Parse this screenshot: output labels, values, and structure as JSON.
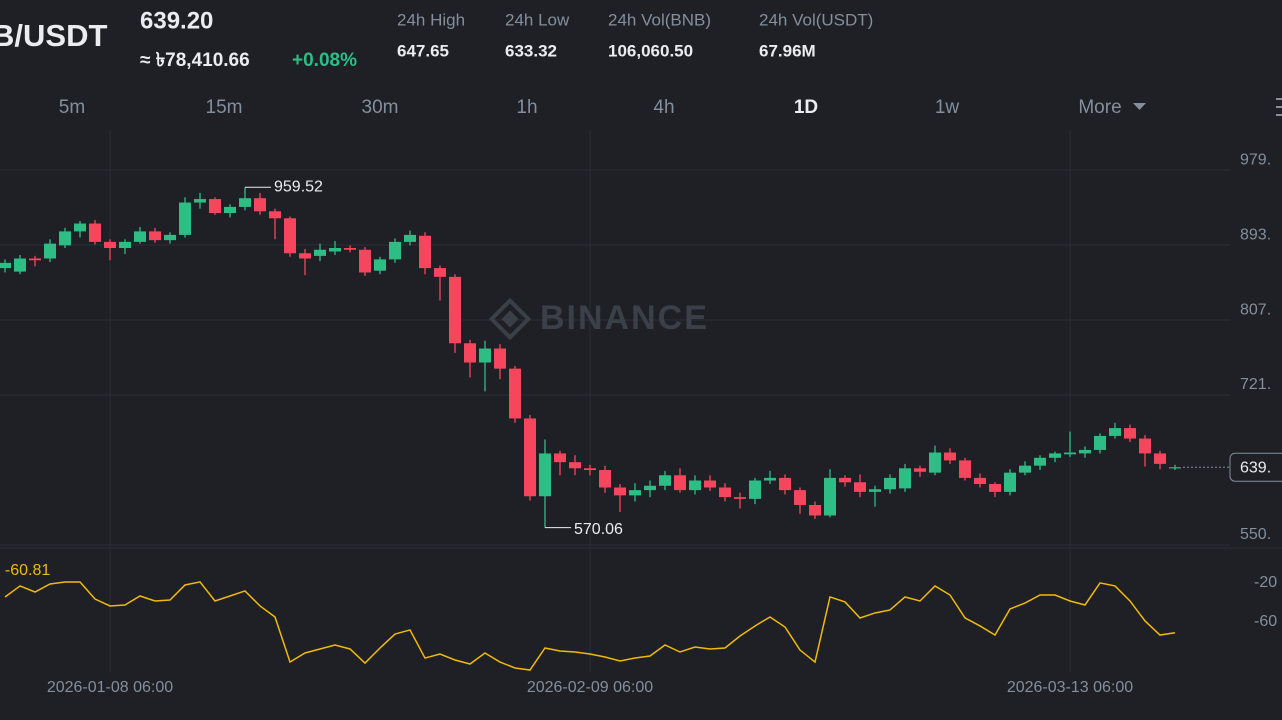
{
  "header": {
    "pair": "B/USDT",
    "price": "639.20",
    "fiat": "≈ ৳78,410.66",
    "change": "+0.08%",
    "stats": [
      {
        "label": "24h High",
        "value": "647.65"
      },
      {
        "label": "24h Low",
        "value": "633.32"
      },
      {
        "label": "24h Vol(BNB)",
        "value": "106,060.50"
      },
      {
        "label": "24h Vol(USDT)",
        "value": "67.96M"
      }
    ]
  },
  "timeframes": [
    "5m",
    "15m",
    "30m",
    "1h",
    "4h",
    "1D",
    "1w",
    "More"
  ],
  "active_timeframe": "1D",
  "watermark": "BINANCE",
  "chart_data": [
    {
      "type": "candlestick",
      "up_color": "#2ebd85",
      "down_color": "#f6465d",
      "grid": true,
      "categories": [
        null,
        null,
        null,
        null,
        null,
        null,
        null,
        "2026-01-08 06:00",
        null,
        null,
        null,
        null,
        null,
        null,
        null,
        null,
        null,
        null,
        null,
        null,
        null,
        null,
        null,
        null,
        null,
        null,
        null,
        null,
        null,
        null,
        null,
        null,
        null,
        null,
        null,
        null,
        null,
        null,
        null,
        "2026-02-09 06:00",
        null,
        null,
        null,
        null,
        null,
        null,
        null,
        null,
        null,
        null,
        null,
        null,
        null,
        null,
        null,
        null,
        null,
        null,
        null,
        null,
        null,
        null,
        null,
        null,
        null,
        null,
        null,
        null,
        null,
        null,
        null,
        "2026-03-13 06:00",
        null,
        null,
        null,
        null,
        null,
        null,
        null
      ],
      "open": [
        867,
        863,
        878,
        878,
        893,
        909,
        918,
        897,
        890,
        897,
        909,
        899,
        905,
        942,
        946,
        930,
        937,
        947,
        932,
        924,
        884,
        881,
        886,
        890,
        888,
        864,
        877,
        897,
        904,
        867,
        857,
        781,
        759,
        775,
        752,
        695,
        606,
        655,
        645,
        638,
        636,
        616,
        607,
        613,
        618,
        630,
        613,
        624,
        616,
        605,
        603,
        624,
        627,
        613,
        596,
        584,
        627,
        622,
        611,
        614,
        615,
        638,
        633,
        656,
        647,
        627,
        620,
        611,
        633,
        641,
        650,
        654,
        655,
        659,
        675,
        684,
        672,
        655,
        638
      ],
      "high": [
        877,
        882,
        881,
        900,
        913,
        921,
        922,
        900,
        900,
        914,
        913,
        908,
        948,
        953,
        948,
        940,
        959.52,
        953,
        935,
        926,
        889,
        895,
        898,
        893,
        891,
        880,
        901,
        910,
        908,
        870,
        860,
        785,
        784,
        780,
        755,
        699,
        671,
        658,
        653,
        642,
        641,
        620,
        621,
        624,
        635,
        638,
        630,
        630,
        621,
        610,
        627,
        635,
        631,
        616,
        600,
        637,
        630,
        631,
        618,
        631,
        643,
        641,
        664,
        661,
        650,
        632,
        622,
        637,
        646,
        653,
        657,
        680,
        663,
        678,
        690,
        688,
        676,
        658,
        642
      ],
      "low": [
        862,
        860,
        869,
        874,
        890,
        902,
        894,
        876,
        883,
        895,
        896,
        895,
        902,
        935,
        928,
        925,
        933,
        928,
        900,
        880,
        859,
        875,
        882,
        885,
        858,
        860,
        873,
        893,
        860,
        830,
        770,
        742,
        726,
        740,
        690,
        601,
        570.06,
        630,
        630,
        630,
        610,
        588,
        600,
        605,
        613,
        610,
        608,
        612,
        600,
        592,
        597,
        620,
        608,
        586,
        580,
        582,
        617,
        605,
        594,
        609,
        611,
        628,
        630,
        643,
        624,
        616,
        605,
        607,
        630,
        636,
        645,
        651,
        650,
        655,
        672,
        668,
        640,
        637,
        636
      ],
      "close": [
        873,
        878,
        876,
        895,
        909,
        918,
        897,
        890,
        897,
        909,
        899,
        905,
        942,
        946,
        930,
        937,
        947,
        932,
        924,
        884,
        878,
        888,
        890,
        888,
        862,
        877,
        897,
        905,
        867,
        857,
        781,
        759,
        775,
        752,
        695,
        606,
        655,
        645,
        638,
        636,
        616,
        607,
        613,
        618,
        630,
        613,
        624,
        616,
        605,
        603,
        624,
        627,
        613,
        596,
        584,
        627,
        622,
        611,
        614,
        627,
        638,
        634,
        656,
        647,
        627,
        620,
        611,
        633,
        641,
        650,
        655,
        656,
        659,
        675,
        684,
        672,
        655,
        643,
        639.2
      ],
      "last_label": "639.",
      "ylim": [
        546.8,
        1025.0
      ],
      "yticks": [
        {
          "value": 550.2,
          "label": "550."
        },
        {
          "value": 721.8,
          "label": "721."
        },
        {
          "value": 807.6,
          "label": "807."
        },
        {
          "value": 893.4,
          "label": "893."
        },
        {
          "value": 979.2,
          "label": "979."
        }
      ]
    },
    {
      "type": "line",
      "color": "#f0b90b",
      "label": ": -60.81",
      "values": [
        -24.1,
        -12.8,
        -19.0,
        -10.8,
        -8.7,
        -8.7,
        -26.2,
        -33.3,
        -32.3,
        -23.1,
        -28.2,
        -27.2,
        -11.8,
        -8.7,
        -28.2,
        -23.1,
        -17.9,
        -33.3,
        -44.6,
        -90.8,
        -81.5,
        -77.4,
        -73.3,
        -77.4,
        -91.8,
        -76.4,
        -62.1,
        -57.9,
        -86.7,
        -82.6,
        -88.7,
        -92.8,
        -81.5,
        -90.8,
        -96.9,
        -99.0,
        -76.4,
        -79.5,
        -80.5,
        -82.6,
        -85.6,
        -89.7,
        -86.7,
        -84.6,
        -73.3,
        -80.5,
        -75.4,
        -77.4,
        -76.4,
        -64.1,
        -53.8,
        -44.6,
        -54.9,
        -78.5,
        -90.8,
        -24.1,
        -29.2,
        -45.6,
        -40.5,
        -37.4,
        -24.1,
        -28.2,
        -12.8,
        -22.1,
        -45.6,
        -53.8,
        -63.1,
        -36.4,
        -30.3,
        -22.1,
        -22.1,
        -28.2,
        -32.3,
        -9.7,
        -12.8,
        -28.2,
        -48.7,
        -63.1,
        -60.81
      ],
      "ylim": [
        -101.0,
        17.9
      ],
      "yticks": [
        -60,
        -20
      ]
    }
  ]
}
